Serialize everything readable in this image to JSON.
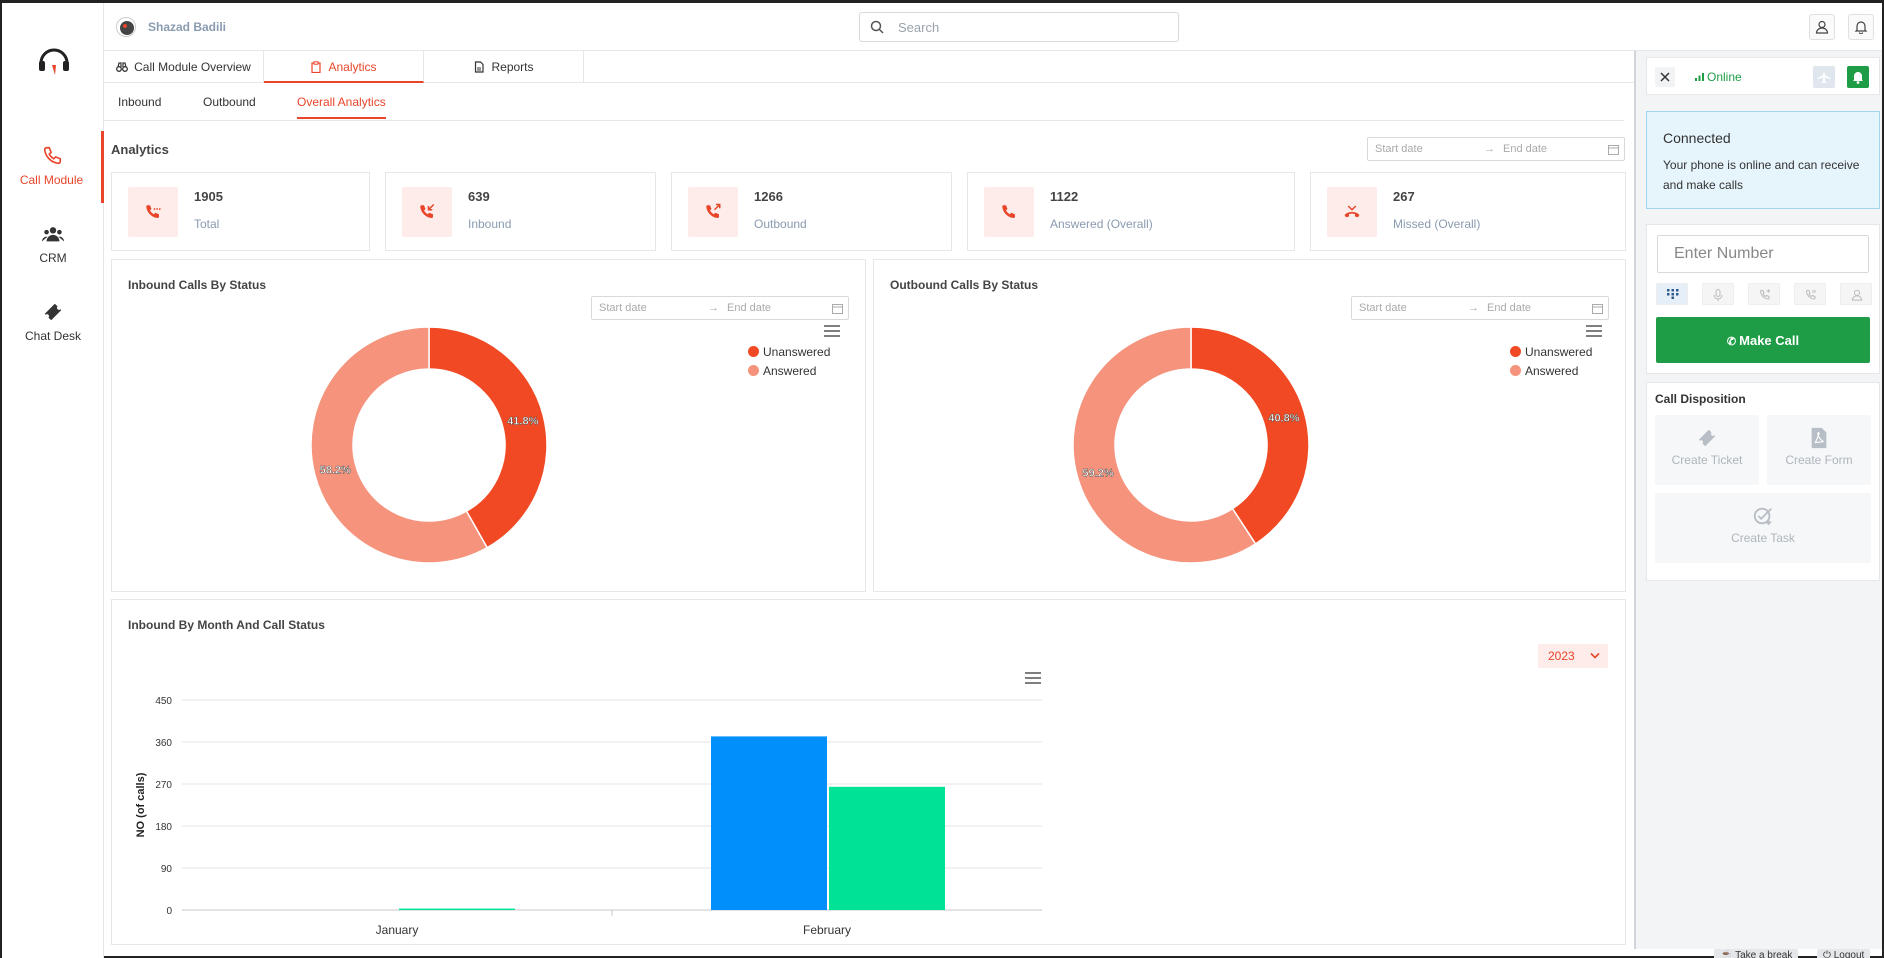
{
  "user": {
    "name": "Shazad Badili"
  },
  "search": {
    "placeholder": "Search"
  },
  "nav": [
    {
      "label": "Call Module",
      "icon": "phone-icon"
    },
    {
      "label": "CRM",
      "icon": "users-icon"
    },
    {
      "label": "Chat Desk",
      "icon": "ticket-icon"
    }
  ],
  "tabs": [
    "Call Module Overview",
    "Analytics",
    "Reports"
  ],
  "subtabs": [
    "Inbound",
    "Outbound",
    "Overall Analytics"
  ],
  "analytics": {
    "title": "Analytics",
    "start_placeholder": "Start date",
    "end_placeholder": "End date"
  },
  "stats": [
    {
      "value": "1905",
      "label": "Total"
    },
    {
      "value": "639",
      "label": "Inbound"
    },
    {
      "value": "1266",
      "label": "Outbound"
    },
    {
      "value": "1122",
      "label": "Answered (Overall)"
    },
    {
      "value": "267",
      "label": "Missed (Overall)"
    }
  ],
  "colors": {
    "accent": "#e8452a",
    "unanswered": "#f04924",
    "answered": "#f5937c",
    "bar_blue": "#008ffb",
    "bar_green": "#00e396",
    "green": "#1e9d46"
  },
  "inbound_card": {
    "title": "Inbound Calls By Status"
  },
  "outbound_card": {
    "title": "Outbound Calls By Status"
  },
  "month_card": {
    "title": "Inbound By Month And Call Status",
    "year": "2023"
  },
  "right_panel": {
    "status": "Online",
    "connected_title": "Connected",
    "connected_text": "Your phone is online and can receive and make calls",
    "number_placeholder": "Enter Number",
    "make_call": "Make Call",
    "disposition_title": "Call Disposition",
    "create_ticket": "Create Ticket",
    "create_form": "Create Form",
    "create_task": "Create Task"
  },
  "footer": {
    "break": "Take a break",
    "logout": "Logout"
  },
  "chart_data": [
    {
      "type": "pie",
      "title": "Inbound Calls By Status",
      "labels": [
        "Unanswered",
        "Answered"
      ],
      "values": [
        41.8,
        58.2
      ],
      "value_labels": [
        "41.8%",
        "58.2%"
      ]
    },
    {
      "type": "pie",
      "title": "Outbound Calls By Status",
      "labels": [
        "Unanswered",
        "Answered"
      ],
      "values": [
        40.8,
        59.2
      ],
      "value_labels": [
        "40.8%",
        "59.2%"
      ]
    },
    {
      "type": "bar",
      "title": "Inbound By Month And Call Status",
      "categories": [
        "January",
        "February"
      ],
      "series": [
        {
          "name": "Answered",
          "values": [
            0,
            372
          ]
        },
        {
          "name": "Unanswered",
          "values": [
            3,
            264
          ]
        }
      ],
      "ylabel": "NO (of calls)",
      "ylim": [
        0,
        450
      ],
      "yticks": [
        "0",
        "90",
        "180",
        "270",
        "360",
        "450"
      ]
    }
  ]
}
